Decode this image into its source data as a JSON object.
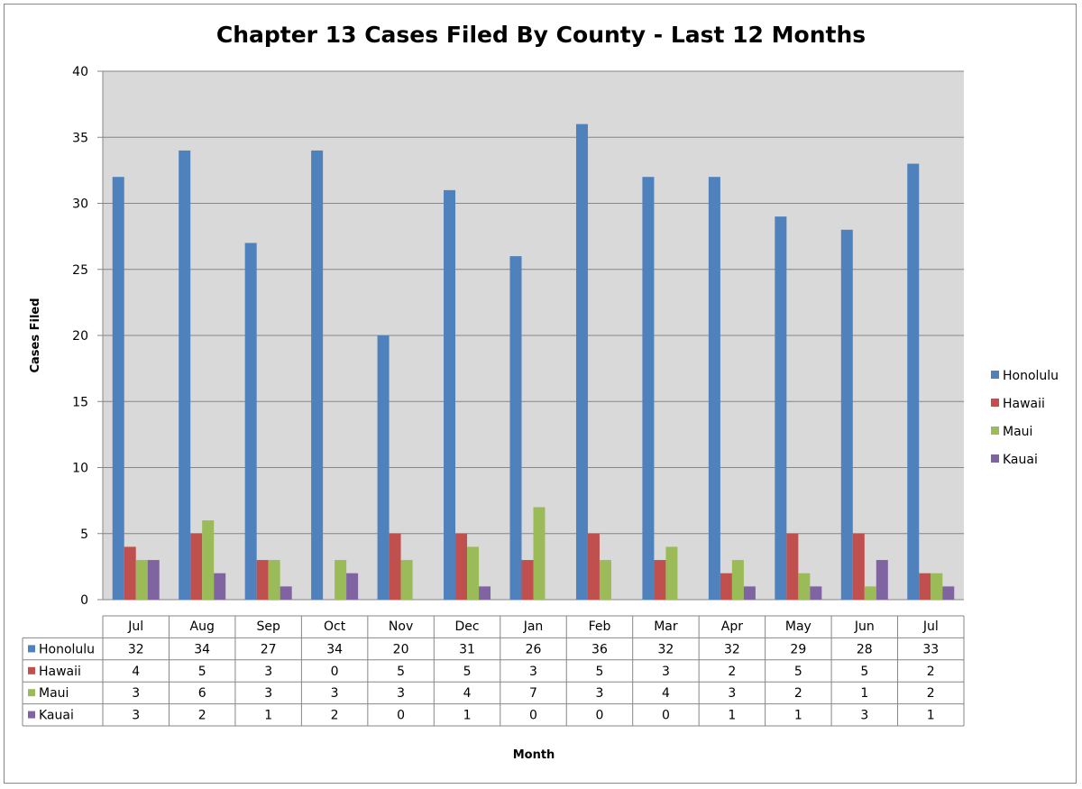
{
  "chart_data": {
    "type": "bar",
    "title": "Chapter 13 Cases Filed By County - Last 12 Months",
    "xlabel": "Month",
    "ylabel": "Cases Filed",
    "ylim": [
      0,
      40
    ],
    "yticks": [
      0,
      5,
      10,
      15,
      20,
      25,
      30,
      35,
      40
    ],
    "grid": true,
    "legend_position": "right",
    "data_table": true,
    "categories": [
      "Jul",
      "Aug",
      "Sep",
      "Oct",
      "Nov",
      "Dec",
      "Jan",
      "Feb",
      "Mar",
      "Apr",
      "May",
      "Jun",
      "Jul"
    ],
    "series": [
      {
        "name": "Honolulu",
        "color": "#4F81BD",
        "values": [
          32,
          34,
          27,
          34,
          20,
          31,
          26,
          36,
          32,
          32,
          29,
          28,
          33
        ]
      },
      {
        "name": "Hawaii",
        "color": "#C0504D",
        "values": [
          4,
          5,
          3,
          0,
          5,
          5,
          3,
          5,
          3,
          2,
          5,
          5,
          2
        ]
      },
      {
        "name": "Maui",
        "color": "#9BBB59",
        "values": [
          3,
          6,
          3,
          3,
          3,
          4,
          7,
          3,
          4,
          3,
          2,
          1,
          2
        ]
      },
      {
        "name": "Kauai",
        "color": "#8064A2",
        "values": [
          3,
          2,
          1,
          2,
          0,
          1,
          0,
          0,
          0,
          1,
          1,
          3,
          1
        ]
      }
    ],
    "plot_background": "#D9D9D9",
    "gridline_color": "#868686"
  }
}
